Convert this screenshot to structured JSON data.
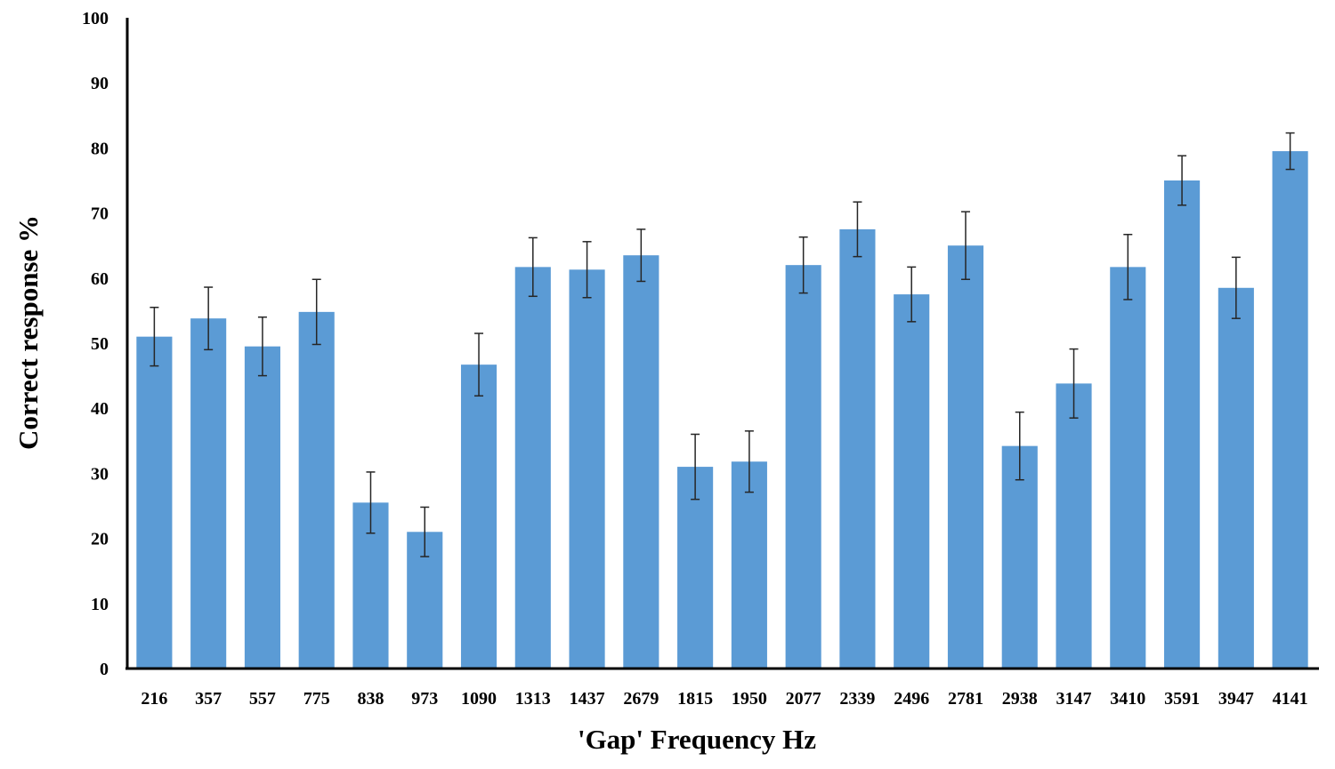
{
  "chart_data": {
    "type": "bar",
    "xlabel": "'Gap' Frequency Hz",
    "ylabel": "Correct response %",
    "ylim": [
      0,
      100
    ],
    "yticks": [
      0,
      10,
      20,
      30,
      40,
      50,
      60,
      70,
      80,
      90,
      100
    ],
    "grid": false,
    "legend": "none",
    "bar_color": "#5b9bd5",
    "categories": [
      "216",
      "357",
      "557",
      "775",
      "838",
      "973",
      "1090",
      "1313",
      "1437",
      "2679",
      "1815",
      "1950",
      "2077",
      "2339",
      "2496",
      "2781",
      "2938",
      "3147",
      "3410",
      "3591",
      "3947",
      "4141"
    ],
    "values": [
      51,
      53.8,
      49.5,
      54.8,
      25.5,
      21,
      46.7,
      61.7,
      61.3,
      63.5,
      31,
      31.8,
      62,
      67.5,
      57.5,
      65,
      34.2,
      43.8,
      61.7,
      75,
      58.5,
      79.5
    ],
    "error_bars": [
      4.5,
      4.8,
      4.5,
      5,
      4.7,
      3.8,
      4.8,
      4.5,
      4.3,
      4,
      5,
      4.7,
      4.3,
      4.2,
      4.2,
      5.2,
      5.2,
      5.3,
      5,
      3.8,
      4.7,
      2.8
    ]
  }
}
